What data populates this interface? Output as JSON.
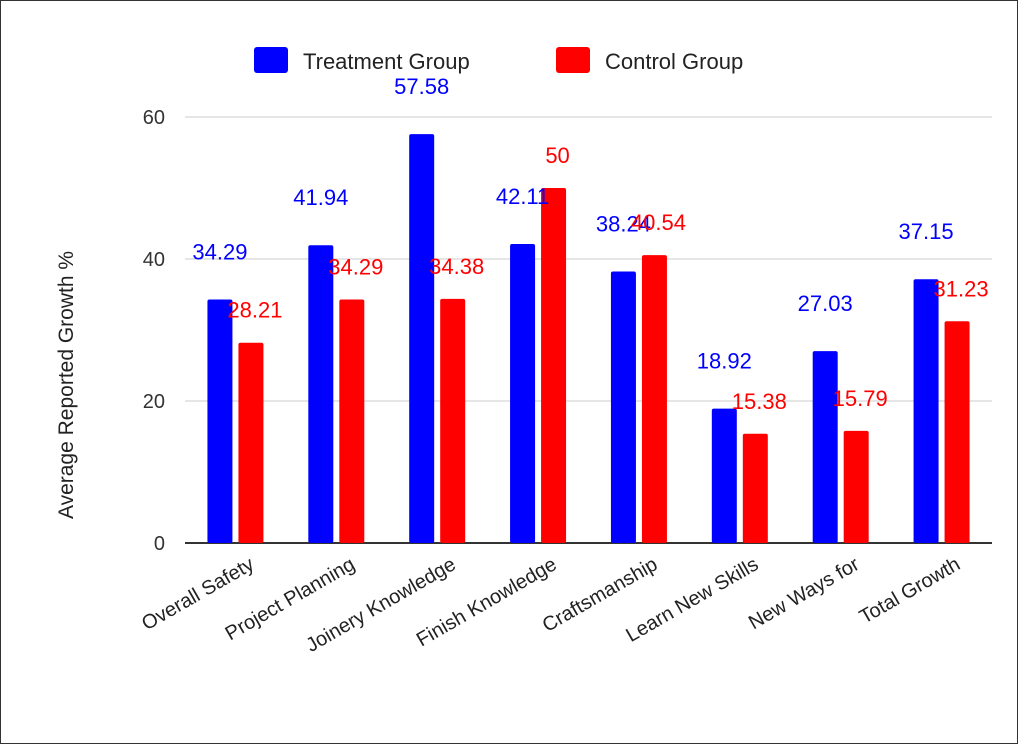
{
  "chart_data": {
    "type": "bar",
    "title": "",
    "xlabel": "",
    "ylabel": "Average Reported Growth %",
    "ylim": [
      0,
      60
    ],
    "yticks": [
      0,
      20,
      40,
      60
    ],
    "grid": true,
    "legend_position": "top",
    "categories": [
      "Overall Safety",
      "Project Planning",
      "Joinery Knowledge",
      "Finish Knowledge",
      "Craftsmanship",
      "Learn New Skills",
      "New Ways for",
      "Total Growth"
    ],
    "series": [
      {
        "name": "Treatment Group",
        "color": "#0000ff",
        "values": [
          34.29,
          41.94,
          57.58,
          42.11,
          38.24,
          18.92,
          27.03,
          37.15
        ]
      },
      {
        "name": "Control Group",
        "color": "#ff0000",
        "values": [
          28.21,
          34.29,
          34.38,
          50,
          40.54,
          15.38,
          15.79,
          31.23
        ]
      }
    ]
  }
}
